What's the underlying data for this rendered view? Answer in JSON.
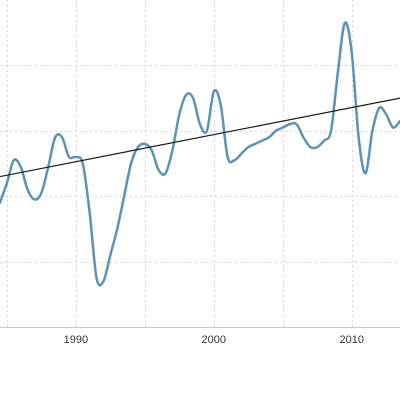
{
  "chart_data": {
    "type": "line",
    "title": "",
    "xlabel": "",
    "ylabel": "",
    "xlim": [
      1984.5,
      2013.5
    ],
    "ylim": [
      0,
      100
    ],
    "x_ticks": [
      1985,
      1990,
      1995,
      2000,
      2005,
      2010
    ],
    "x_tick_labels": [
      "",
      "1990",
      "",
      "2000",
      "",
      "2010"
    ],
    "y_gridlines": [
      20,
      40,
      60,
      80
    ],
    "grid": true,
    "legend": "none",
    "colors": {
      "series": "#5b93b7",
      "trend": "#1a1a1a",
      "grid": "#d3d3d3",
      "baseline": "#c8c8c8"
    },
    "series": [
      {
        "x": [
          1984.5,
          1985.0,
          1985.5,
          1986.0,
          1986.5,
          1987.0,
          1987.5,
          1988.0,
          1988.5,
          1989.0,
          1989.5,
          1990.0,
          1990.5,
          1991.0,
          1991.5,
          1992.0,
          1992.5,
          1993.0,
          1993.5,
          1994.0,
          1994.5,
          1995.0,
          1995.5,
          1996.0,
          1996.5,
          1997.0,
          1997.5,
          1998.0,
          1998.5,
          1999.0,
          1999.5,
          2000.0,
          2000.5,
          2001.0,
          2001.5,
          2002.0,
          2002.5,
          2003.0,
          2003.5,
          2004.0,
          2004.5,
          2005.0,
          2005.5,
          2006.0,
          2006.5,
          2007.0,
          2007.5,
          2008.0,
          2008.5,
          2009.0,
          2009.5,
          2010.0,
          2010.5,
          2011.0,
          2011.5,
          2012.0,
          2012.5,
          2013.0,
          2013.5
        ],
        "values": [
          38,
          44,
          51,
          49,
          42,
          39,
          41,
          49,
          58,
          58,
          52,
          52,
          50,
          35,
          15,
          14,
          22,
          30,
          40,
          50,
          55,
          56,
          54,
          48,
          47,
          54,
          65,
          71,
          70,
          62,
          60,
          72,
          68,
          52,
          51,
          53,
          55,
          56,
          57,
          58,
          60,
          61,
          62,
          62,
          58,
          55,
          55,
          57,
          60,
          78,
          93,
          84,
          58,
          47,
          60,
          67,
          65,
          61,
          63
        ]
      }
    ],
    "trend": {
      "x": [
        1984.5,
        2013.5
      ],
      "values": [
        46,
        70
      ]
    }
  }
}
